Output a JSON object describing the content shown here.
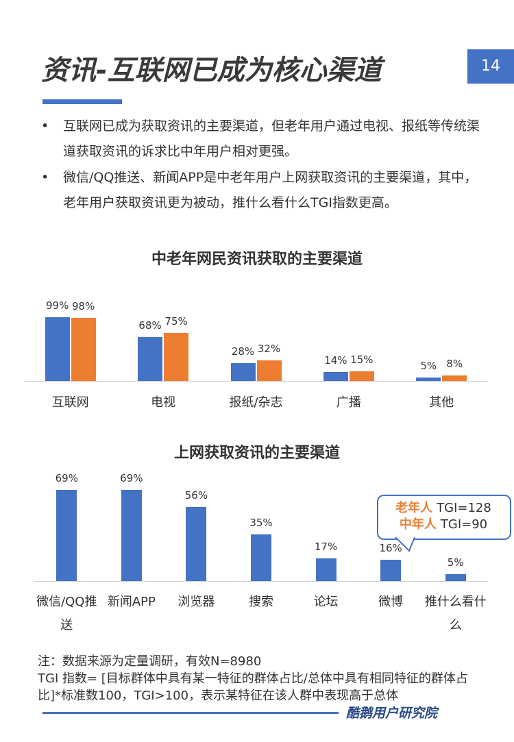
{
  "header": {
    "title": "资讯-互联网已成为核心渠道",
    "page_number": "14"
  },
  "bullets": [
    "互联网已成为获取资讯的主要渠道，但老年用户通过电视、报纸等传统渠道获取资讯的诉求比中年用户相对更强。",
    "微信/QQ推送、新闻APP是中老年用户上网获取资讯的主要渠道，其中，老年用户获取资讯更为被动，推什么看什么TGI指数更高。"
  ],
  "chart_data": [
    {
      "type": "bar",
      "title": "中老年网民资讯获取的主要渠道",
      "categories": [
        "互联网",
        "电视",
        "报纸/杂志",
        "广播",
        "其他"
      ],
      "series": [
        {
          "color": "#4472c4",
          "values": [
            99,
            68,
            28,
            14,
            5
          ],
          "value_labels": [
            "99%",
            "68%",
            "28%",
            "14%",
            "5%"
          ]
        },
        {
          "color": "#ed7d31",
          "values": [
            98,
            75,
            32,
            15,
            8
          ],
          "value_labels": [
            "98%",
            "75%",
            "32%",
            "15%",
            "8%"
          ]
        }
      ]
    },
    {
      "type": "bar",
      "title": "上网获取资讯的主要渠道",
      "categories": [
        "微信/QQ推送",
        "新闻APP",
        "浏览器",
        "搜索",
        "论坛",
        "微博",
        "推什么看什么"
      ],
      "color": "#4472c4",
      "values": [
        69,
        69,
        56,
        35,
        17,
        16,
        5
      ],
      "value_labels": [
        "69%",
        "69%",
        "56%",
        "35%",
        "17%",
        "16%",
        "5%"
      ],
      "annotation": [
        {
          "label": "老年人",
          "text": "TGI=128"
        },
        {
          "label": "中年人",
          "text": "TGI=90"
        }
      ]
    }
  ],
  "notes": [
    "注：数据来源为定量调研，有效N=8980",
    "TGI 指数= [目标群体中具有某一特征的群体占比/总体中具有相同特征的群体占比]*标准数100，TGI>100，表示某特征在该人群中表现高于总体"
  ],
  "footer": {
    "brand": "酷鹅用户研究院"
  }
}
